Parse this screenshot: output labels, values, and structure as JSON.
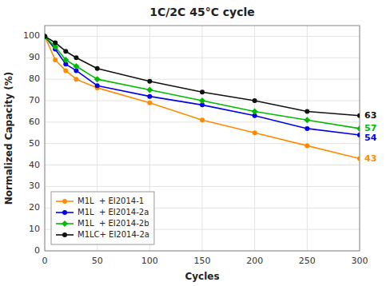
{
  "chart_data": {
    "type": "line",
    "title": "1C/2C 45°C cycle",
    "xlabel": "Cycles",
    "ylabel": "Normalized Capacity (%)",
    "x": [
      0,
      10,
      20,
      30,
      50,
      100,
      150,
      200,
      250,
      300
    ],
    "series": [
      {
        "name": "M1L  + EI2014-1",
        "color": "#FF8C00",
        "marker": "circle",
        "values": [
          100,
          89,
          84,
          80,
          76,
          69,
          61,
          55,
          49,
          43
        ]
      },
      {
        "name": "M1L  + EI2014-2a",
        "color": "#0000EE",
        "marker": "circle",
        "values": [
          100,
          94,
          87,
          84,
          77,
          72,
          68,
          63,
          57,
          54
        ]
      },
      {
        "name": "M1L  + EI2014-2b",
        "color": "#00BB00",
        "marker": "diamond",
        "values": [
          100,
          95,
          89,
          86,
          80,
          75,
          70,
          65,
          61,
          57
        ]
      },
      {
        "name": "M1LC+ EI2014-2a",
        "color": "#111111",
        "marker": "circle",
        "values": [
          100,
          97,
          93,
          90,
          85,
          79,
          74,
          70,
          65,
          63
        ]
      }
    ],
    "xlim": [
      0,
      300
    ],
    "ylim": [
      0,
      105
    ],
    "xticks": [
      0,
      50,
      100,
      150,
      200,
      250,
      300
    ],
    "yticks": [
      0,
      10,
      20,
      30,
      40,
      50,
      60,
      70,
      80,
      90,
      100
    ],
    "grid": true,
    "legend": "lower left",
    "annotations": [
      {
        "text": "63",
        "y": 63,
        "color": "#111111"
      },
      {
        "text": "57",
        "y": 57,
        "color": "#00BB00"
      },
      {
        "text": "54",
        "y": 54,
        "color": "#0000EE"
      },
      {
        "text": "43",
        "y": 43,
        "color": "#FF8C00"
      }
    ]
  }
}
